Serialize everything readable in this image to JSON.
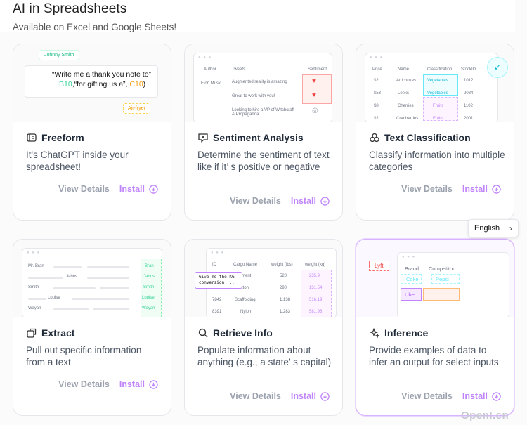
{
  "header": {
    "title": "AI in Spreadsheets",
    "subtitle": "Available on Excel and Google Sheets!"
  },
  "actions": {
    "view": "View Details",
    "install": "Install"
  },
  "cards": [
    {
      "title": "Freeform",
      "icon": "freeform-icon",
      "description": "It's ChatGPT inside your spreadsheet!",
      "preview": {
        "user": "Johnny Smith",
        "prompt_start": "“Write me a thank you note to”,",
        "ref1": "B10",
        "prompt_mid": ",“for gifting us a”,",
        "ref2": "C10",
        "prompt_end": ")",
        "cell": "Air-fryer"
      }
    },
    {
      "title": "Sentiment Analysis",
      "icon": "sentiment-icon",
      "description": "Determine the sentiment of text like if it’ s positive or negative",
      "preview": {
        "headers": [
          "Author",
          "Tweets",
          "Sentiment"
        ],
        "author": "Elon Musk",
        "tweets": [
          "Augmented reality is amazing",
          "Great to work with you!",
          "Looking to hire a VP of Witchcraft & Propaganda"
        ]
      }
    },
    {
      "title": "Text Classification",
      "icon": "classification-icon",
      "description": "Classify information into multiple categories",
      "preview": {
        "headers": [
          "Price",
          "Name",
          "Classification",
          "StockID"
        ],
        "rows": [
          [
            "$2",
            "Artichokes",
            "Vegetables",
            "1012"
          ],
          [
            "$53",
            "Leeks",
            "Vegetables",
            "2084"
          ],
          [
            "$8",
            "Cherries",
            "Fruits",
            "1102"
          ],
          [
            "$2",
            "Cranberries",
            "Fruits",
            "2001"
          ]
        ]
      }
    },
    {
      "title": "Extract",
      "icon": "extract-icon",
      "description": "Pull out specific information from a text",
      "preview": {
        "rows": [
          [
            "Mr. Bran",
            "",
            "Bran"
          ],
          [
            "",
            "Jahns",
            "Jahns"
          ],
          [
            "Smith",
            "",
            "Smith"
          ],
          [
            "",
            "Louise",
            "Louise"
          ],
          [
            "Wayan",
            "",
            "Wayan"
          ]
        ]
      }
    },
    {
      "title": "Retrieve Info",
      "icon": "search-icon",
      "description": "Populate information about anything (e.g., a state’ s capital)",
      "preview": {
        "headers": [
          "ID",
          "Cargo Name",
          "weight (lbs)",
          "weight (kg)"
        ],
        "rows": [
          [
            "",
            "ment",
            "520",
            "235.9"
          ],
          [
            "",
            "tton",
            "290",
            "131.54"
          ],
          [
            "7842",
            "Scaffolding",
            "1,138",
            "516.19"
          ],
          [
            "8391",
            "Nylon",
            "1,283",
            "581.96"
          ]
        ],
        "tooltip": "Give me the KG conversion ..."
      }
    },
    {
      "title": "Inference",
      "icon": "sparkle-icon",
      "description": "Provide examples of data to infer an output for select inputs",
      "preview": {
        "headers": [
          "Brand",
          "Competitor"
        ],
        "rows": [
          [
            "Coke",
            "Pepsi"
          ],
          [
            "Uber",
            ""
          ]
        ],
        "tag": "Lyft"
      }
    }
  ],
  "language": {
    "label": "English"
  },
  "watermark": "OpenI.cn"
}
